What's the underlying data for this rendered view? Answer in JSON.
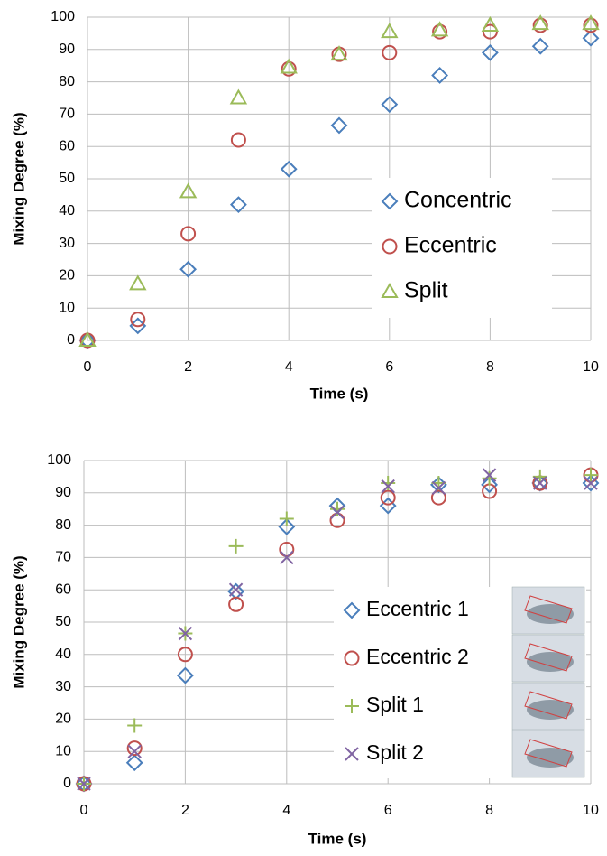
{
  "chart_data": [
    {
      "type": "scatter",
      "xlabel": "Time (s)",
      "ylabel": "Mixing Degree (%)",
      "x": [
        0,
        1,
        2,
        3,
        4,
        5,
        6,
        7,
        8,
        9,
        10
      ],
      "xlim": [
        0,
        10
      ],
      "xticks": [
        0,
        2,
        4,
        6,
        8,
        10
      ],
      "ylim": [
        0,
        100
      ],
      "yticks": [
        0,
        10,
        20,
        30,
        40,
        50,
        60,
        70,
        80,
        90,
        100
      ],
      "grid": true,
      "series": [
        {
          "name": "Concentric",
          "color": "#4a7ebb",
          "marker": "diamond",
          "values": [
            0,
            4.5,
            22,
            42,
            53,
            66.5,
            73,
            82,
            89,
            91,
            93.5
          ]
        },
        {
          "name": "Eccentric",
          "color": "#c0504d",
          "marker": "circle",
          "values": [
            0,
            6.5,
            33,
            62,
            84,
            88.5,
            89,
            95.5,
            95.5,
            97.5,
            97.5
          ]
        },
        {
          "name": "Split",
          "color": "#9bbb59",
          "marker": "triangle",
          "values": [
            0,
            17.5,
            46,
            75,
            84.5,
            88.5,
            95.5,
            96,
            97.5,
            98,
            98
          ]
        }
      ]
    },
    {
      "type": "scatter",
      "xlabel": "Time (s)",
      "ylabel": "Mixing Degree (%)",
      "x": [
        0,
        1,
        2,
        3,
        4,
        5,
        6,
        7,
        8,
        9,
        10
      ],
      "xlim": [
        0,
        10
      ],
      "xticks": [
        0,
        2,
        4,
        6,
        8,
        10
      ],
      "ylim": [
        0,
        100
      ],
      "yticks": [
        0,
        10,
        20,
        30,
        40,
        50,
        60,
        70,
        80,
        90,
        100
      ],
      "grid": true,
      "series": [
        {
          "name": "Eccentric 1",
          "color": "#4a7ebb",
          "marker": "diamond",
          "values": [
            0,
            6.5,
            33.5,
            59.5,
            79.5,
            86,
            86,
            92.5,
            92.5,
            93,
            93
          ]
        },
        {
          "name": "Eccentric 2",
          "color": "#c0504d",
          "marker": "circle",
          "values": [
            0,
            11,
            40,
            55.5,
            72.5,
            81.5,
            88.5,
            88.5,
            90.5,
            93,
            95.5
          ]
        },
        {
          "name": "Split 1",
          "color": "#9bbb59",
          "marker": "plus",
          "values": [
            0,
            18,
            46.5,
            73.5,
            82,
            85,
            93,
            93,
            94.5,
            95,
            95.5
          ]
        },
        {
          "name": "Split 2",
          "color": "#8064a2",
          "marker": "x",
          "values": [
            0,
            10,
            46.5,
            60,
            70,
            84,
            92,
            91.5,
            95.5,
            93,
            93
          ]
        }
      ]
    }
  ]
}
